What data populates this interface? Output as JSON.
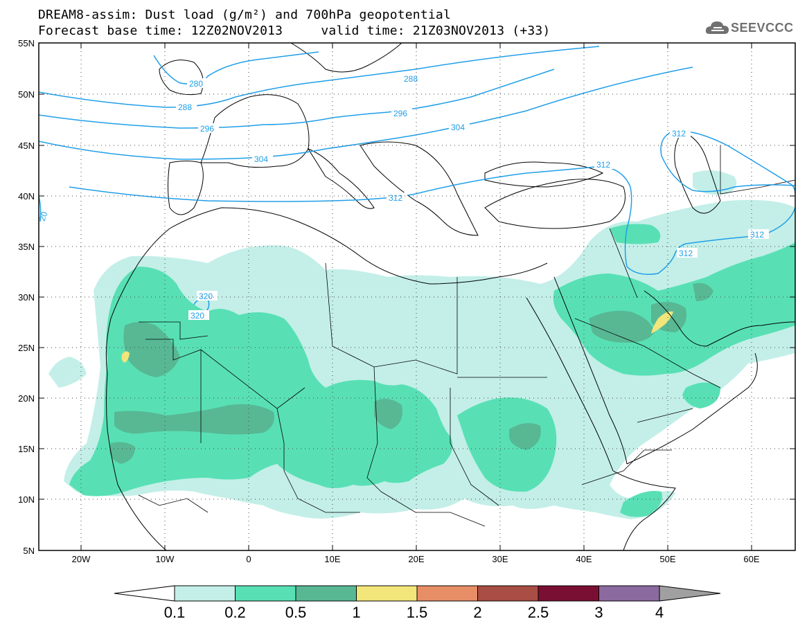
{
  "header": {
    "line1": "DREAM8-assim: Dust load (g/m²) and 700hPa geopotential",
    "line2": "Forecast base time: 12Z02NOV2013     valid time: 21Z03NOV2013 (+33)",
    "logo_text": "SEEVCCC",
    "logo_icon": "cloud-icon"
  },
  "map": {
    "lat_labels": [
      "55N",
      "50N",
      "45N",
      "40N",
      "35N",
      "30N",
      "25N",
      "20N",
      "15N",
      "10N",
      "5N"
    ],
    "lon_labels": [
      "20W",
      "10W",
      "0",
      "10E",
      "20E",
      "30E",
      "40E",
      "50E",
      "60E"
    ],
    "contour_labels": [
      "280",
      "288",
      "288",
      "296",
      "296",
      "304",
      "304",
      "312",
      "312",
      "312",
      "312",
      "312",
      "320",
      "320",
      "20"
    ],
    "contour_color": "#1f9ee8"
  },
  "colorbar": {
    "labels": [
      "0.1",
      "0.2",
      "0.5",
      "1",
      "1.5",
      "2",
      "2.5",
      "3",
      "4"
    ],
    "colors": [
      "#c3efe8",
      "#58e0b4",
      "#58b894",
      "#f2e67a",
      "#e88e66",
      "#a84e44",
      "#7a0f34",
      "#8b6aa0"
    ],
    "under_color": "#ffffff",
    "over_color": "#a0a0a0"
  }
}
